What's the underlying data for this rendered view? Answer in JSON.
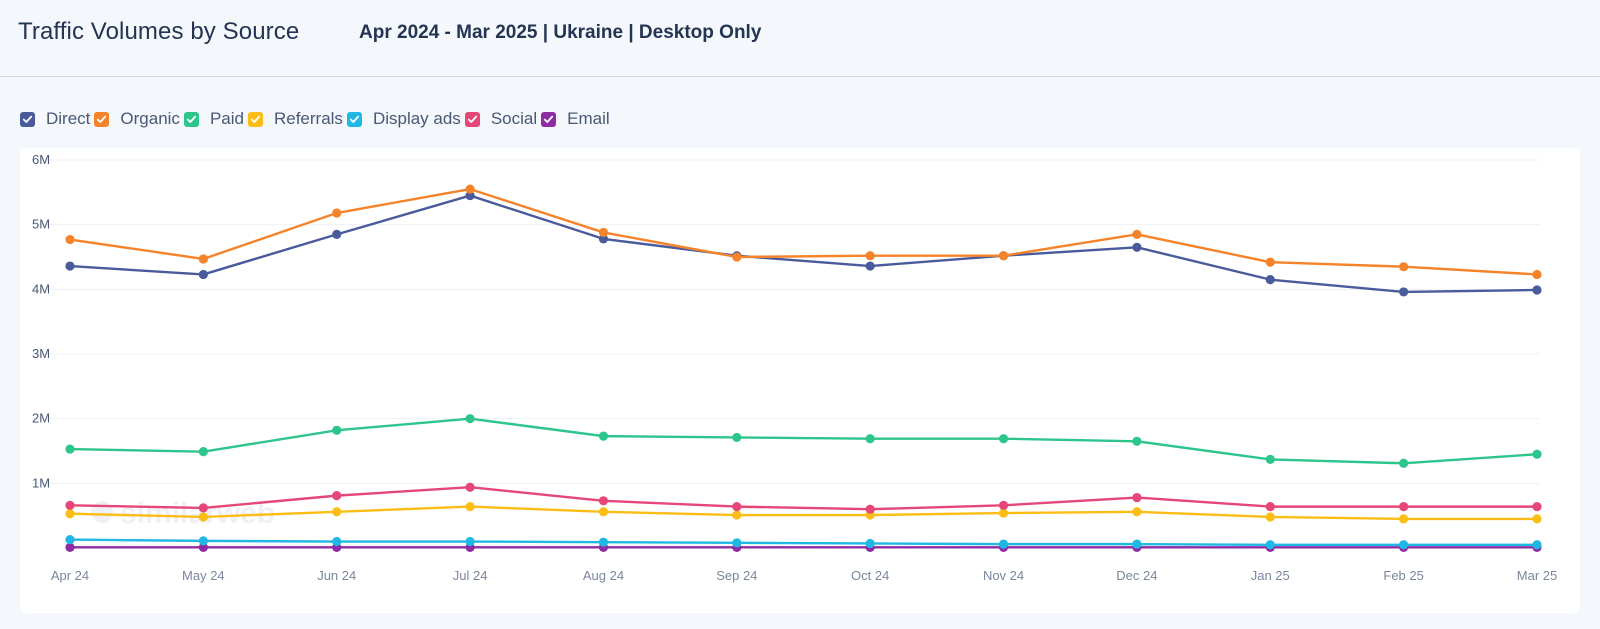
{
  "header": {
    "title": "Traffic Volumes by Source",
    "subtitle": "Apr 2024 - Mar 2025 | Ukraine | Desktop Only"
  },
  "legend": [
    {
      "label": "Direct",
      "color": "#4a5b9b",
      "checked": true
    },
    {
      "label": "Organic",
      "color": "#f5832a",
      "checked": true
    },
    {
      "label": "Paid",
      "color": "#2ec58c",
      "checked": true
    },
    {
      "label": "Referrals",
      "color": "#fbbd16",
      "checked": true
    },
    {
      "label": "Display ads",
      "color": "#1fb8e3",
      "checked": true
    },
    {
      "label": "Social",
      "color": "#e54778",
      "checked": true
    },
    {
      "label": "Email",
      "color": "#8e2ba5",
      "checked": true
    }
  ],
  "watermark": "similarweb",
  "chart_data": {
    "type": "line",
    "title": "Traffic Volumes by Source",
    "subtitle": "Apr 2024 - Mar 2025 | Ukraine | Desktop Only",
    "xlabel": "",
    "ylabel": "",
    "categories": [
      "Apr 24",
      "May 24",
      "Jun 24",
      "Jul 24",
      "Aug 24",
      "Sep 24",
      "Oct 24",
      "Nov 24",
      "Dec 24",
      "Jan 25",
      "Feb 25",
      "Mar 25"
    ],
    "ylim": [
      0,
      6000000
    ],
    "yticks": [
      {
        "value": 1000000,
        "label": "1M"
      },
      {
        "value": 2000000,
        "label": "2M"
      },
      {
        "value": 3000000,
        "label": "3M"
      },
      {
        "value": 4000000,
        "label": "4M"
      },
      {
        "value": 5000000,
        "label": "5M"
      },
      {
        "value": 6000000,
        "label": "6M"
      }
    ],
    "grid": true,
    "legend_position": "top-left",
    "series": [
      {
        "name": "Direct",
        "color": "#4a5b9b",
        "values": [
          4360000,
          4230000,
          4850000,
          5450000,
          4780000,
          4520000,
          4360000,
          4520000,
          4650000,
          4150000,
          3960000,
          3990000
        ]
      },
      {
        "name": "Organic",
        "color": "#f5832a",
        "values": [
          4770000,
          4470000,
          5180000,
          5550000,
          4880000,
          4500000,
          4520000,
          4520000,
          4850000,
          4420000,
          4350000,
          4230000
        ]
      },
      {
        "name": "Paid",
        "color": "#2ec58c",
        "values": [
          1530000,
          1490000,
          1820000,
          2000000,
          1730000,
          1710000,
          1690000,
          1690000,
          1650000,
          1370000,
          1310000,
          1450000
        ]
      },
      {
        "name": "Referrals",
        "color": "#fbbd16",
        "values": [
          530000,
          480000,
          560000,
          640000,
          560000,
          510000,
          510000,
          540000,
          560000,
          480000,
          450000,
          450000
        ]
      },
      {
        "name": "Display ads",
        "color": "#1fb8e3",
        "values": [
          130000,
          110000,
          100000,
          100000,
          90000,
          80000,
          70000,
          60000,
          60000,
          50000,
          50000,
          50000
        ]
      },
      {
        "name": "Social",
        "color": "#e54778",
        "values": [
          660000,
          620000,
          810000,
          940000,
          730000,
          640000,
          600000,
          660000,
          780000,
          640000,
          640000,
          640000
        ]
      },
      {
        "name": "Email",
        "color": "#8e2ba5",
        "values": [
          10000,
          10000,
          10000,
          10000,
          10000,
          10000,
          10000,
          10000,
          10000,
          10000,
          10000,
          10000
        ]
      }
    ]
  }
}
